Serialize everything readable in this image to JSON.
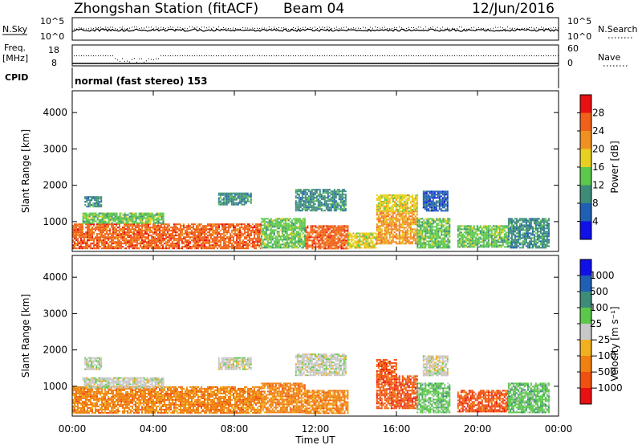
{
  "header": {
    "title": "Zhongshan Station (fitACF)",
    "beam": "Beam 04",
    "date": "12/Jun/2016"
  },
  "status_panels": {
    "nsky_label": "N.Sky",
    "nsky_ticks": [
      "10^5",
      "10^0"
    ],
    "nsearch_label": "N.Search",
    "nsearch_ticks": [
      "10^5",
      "10^0"
    ],
    "freq_label_line1": "Freq.",
    "freq_label_line2": "[MHz]",
    "freq_ticks": [
      "18",
      "8"
    ],
    "nave_label": "Nave",
    "nave_ticks": [
      "60",
      "0"
    ],
    "cpid_label": "CPID",
    "cpid_text": "normal (fast stereo) 153"
  },
  "chart_data": [
    {
      "type": "heatmap",
      "title": "",
      "xlabel": "Time UT",
      "ylabel": "Slant Range [km]",
      "x_ticks": [
        "00:00",
        "04:00",
        "08:00",
        "12:00",
        "16:00",
        "20:00",
        "00:00"
      ],
      "xlim": [
        0,
        24
      ],
      "ylim": [
        180,
        4600
      ],
      "y_ticks": [
        1000,
        2000,
        3000,
        4000
      ],
      "colorbar": {
        "label": "Power [dB]",
        "ticks": [
          "4",
          "8",
          "12",
          "16",
          "20",
          "24",
          "28"
        ],
        "range": [
          0,
          32
        ],
        "colors": [
          "#1010e8",
          "#1f5fb4",
          "#3c8c78",
          "#5cc84a",
          "#e8d020",
          "#f09020",
          "#f06018",
          "#e81010"
        ]
      },
      "regions": [
        {
          "t0": 0.0,
          "t1": 9.3,
          "r0": 250,
          "r1": 950,
          "value": 24
        },
        {
          "t0": 0.5,
          "t1": 4.5,
          "r0": 950,
          "r1": 1250,
          "value": 14
        },
        {
          "t0": 0.6,
          "t1": 1.4,
          "r0": 1400,
          "r1": 1700,
          "value": 8
        },
        {
          "t0": 7.2,
          "t1": 8.8,
          "r0": 1450,
          "r1": 1800,
          "value": 8
        },
        {
          "t0": 9.3,
          "t1": 11.5,
          "r0": 300,
          "r1": 1100,
          "value": 14
        },
        {
          "t0": 11.5,
          "t1": 13.6,
          "r0": 250,
          "r1": 900,
          "value": 24
        },
        {
          "t0": 11.0,
          "t1": 13.5,
          "r0": 1300,
          "r1": 1900,
          "value": 8
        },
        {
          "t0": 13.6,
          "t1": 15.0,
          "r0": 300,
          "r1": 700,
          "value": 18
        },
        {
          "t0": 15.0,
          "t1": 17.0,
          "r0": 400,
          "r1": 1300,
          "value": 22
        },
        {
          "t0": 15.0,
          "t1": 17.0,
          "r0": 1300,
          "r1": 1750,
          "value": 18
        },
        {
          "t0": 17.0,
          "t1": 18.6,
          "r0": 300,
          "r1": 1100,
          "value": 12
        },
        {
          "t0": 17.3,
          "t1": 18.5,
          "r0": 1300,
          "r1": 1850,
          "value": 6
        },
        {
          "t0": 19.0,
          "t1": 21.5,
          "r0": 300,
          "r1": 900,
          "value": 14
        },
        {
          "t0": 21.5,
          "t1": 23.5,
          "r0": 300,
          "r1": 1100,
          "value": 8
        }
      ]
    },
    {
      "type": "heatmap",
      "title": "",
      "xlabel": "Time UT",
      "ylabel": "Slant Range [km]",
      "x_ticks": [
        "00:00",
        "04:00",
        "08:00",
        "12:00",
        "16:00",
        "20:00",
        "00:00"
      ],
      "xlim": [
        0,
        24
      ],
      "ylim": [
        180,
        4600
      ],
      "y_ticks": [
        1000,
        2000,
        3000,
        4000
      ],
      "colorbar": {
        "label": "Velocity [m s⁻¹]",
        "ticks": [
          "1000",
          "500",
          "100",
          "25",
          "−25",
          "−100",
          "−500",
          "−1000"
        ],
        "colors": [
          "#1010e8",
          "#1f5fb4",
          "#3c8c78",
          "#5cc84a",
          "#c8c8c8",
          "#f0b020",
          "#f08010",
          "#f05010",
          "#e81010"
        ]
      },
      "regions": [
        {
          "t0": 0.0,
          "t1": 9.3,
          "r0": 250,
          "r1": 1000,
          "value": "-100"
        },
        {
          "t0": 0.5,
          "t1": 4.5,
          "r0": 950,
          "r1": 1250,
          "value": "25"
        },
        {
          "t0": 0.6,
          "t1": 1.4,
          "r0": 1450,
          "r1": 1800,
          "value": "25"
        },
        {
          "t0": 7.2,
          "t1": 8.8,
          "r0": 1450,
          "r1": 1800,
          "value": "25"
        },
        {
          "t0": 9.3,
          "t1": 11.5,
          "r0": 300,
          "r1": 1100,
          "value": "-100"
        },
        {
          "t0": 11.5,
          "t1": 13.6,
          "r0": 250,
          "r1": 900,
          "value": "-100"
        },
        {
          "t0": 11.0,
          "t1": 13.5,
          "r0": 1300,
          "r1": 1900,
          "value": "25"
        },
        {
          "t0": 15.0,
          "t1": 17.0,
          "r0": 400,
          "r1": 1300,
          "value": "-500"
        },
        {
          "t0": 15.0,
          "t1": 16.0,
          "r0": 1300,
          "r1": 1750,
          "value": "-500"
        },
        {
          "t0": 17.0,
          "t1": 18.6,
          "r0": 300,
          "r1": 1100,
          "value": "100"
        },
        {
          "t0": 17.3,
          "t1": 18.5,
          "r0": 1300,
          "r1": 1850,
          "value": "25"
        },
        {
          "t0": 19.0,
          "t1": 21.5,
          "r0": 300,
          "r1": 900,
          "value": "-500"
        },
        {
          "t0": 21.5,
          "t1": 23.5,
          "r0": 300,
          "r1": 1100,
          "value": "100"
        }
      ]
    }
  ]
}
